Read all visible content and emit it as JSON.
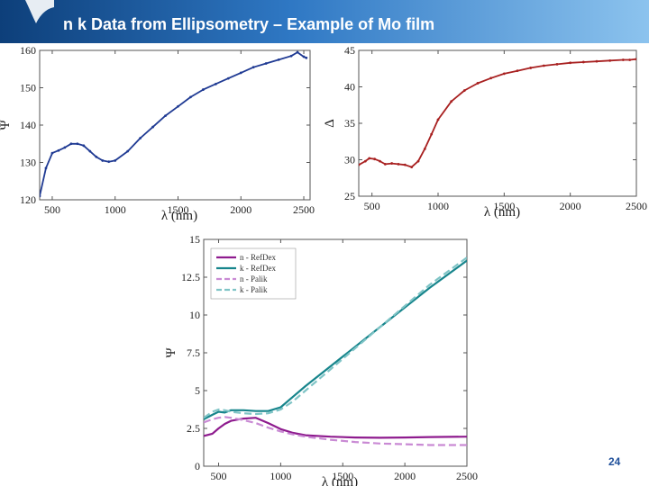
{
  "slide": {
    "title": "n k Data from Ellipsometry – Example of Mo film",
    "page_number": "24",
    "colors": {
      "header_dark": "#0d3f7a",
      "header_light": "#8cc3ee"
    }
  },
  "chart_data": [
    {
      "type": "line",
      "title": "",
      "xlabel": "λ (nm)",
      "ylabel": "Ψ",
      "xlim": [
        400,
        2550
      ],
      "ylim": [
        120,
        160
      ],
      "xticks": [
        500,
        1000,
        1500,
        2000,
        2500
      ],
      "yticks": [
        120,
        130,
        140,
        150,
        160
      ],
      "series": [
        {
          "name": "Ψ",
          "color": "#1f3a93",
          "x": [
            400,
            450,
            500,
            550,
            600,
            650,
            700,
            750,
            800,
            850,
            900,
            950,
            1000,
            1100,
            1200,
            1300,
            1400,
            1500,
            1600,
            1700,
            1800,
            1900,
            2000,
            2100,
            2200,
            2300,
            2400,
            2450,
            2500,
            2520
          ],
          "y": [
            121,
            128.5,
            132.5,
            133.2,
            134,
            135,
            135,
            134.5,
            133,
            131.5,
            130.5,
            130.2,
            130.5,
            133,
            136.5,
            139.5,
            142.5,
            145,
            147.5,
            149.5,
            151,
            152.5,
            154,
            155.5,
            156.5,
            157.5,
            158.5,
            159.5,
            158.3,
            158
          ]
        }
      ]
    },
    {
      "type": "line",
      "title": "",
      "xlabel": "λ (nm)",
      "ylabel": "Δ",
      "xlim": [
        400,
        2500
      ],
      "ylim": [
        25,
        45
      ],
      "xticks": [
        500,
        1000,
        1500,
        2000,
        2500
      ],
      "yticks": [
        25,
        30,
        35,
        40,
        45
      ],
      "series": [
        {
          "name": "Δ",
          "color": "#a82020",
          "x": [
            400,
            450,
            480,
            520,
            560,
            600,
            650,
            700,
            750,
            800,
            850,
            900,
            950,
            1000,
            1100,
            1200,
            1300,
            1400,
            1500,
            1600,
            1700,
            1800,
            1900,
            2000,
            2100,
            2200,
            2300,
            2400,
            2450,
            2500
          ],
          "y": [
            29.3,
            29.8,
            30.2,
            30.1,
            29.8,
            29.4,
            29.5,
            29.4,
            29.3,
            29,
            29.8,
            31.5,
            33.5,
            35.5,
            38,
            39.5,
            40.5,
            41.2,
            41.8,
            42.2,
            42.6,
            42.9,
            43.1,
            43.3,
            43.4,
            43.5,
            43.6,
            43.7,
            43.7,
            43.8
          ]
        }
      ]
    },
    {
      "type": "line",
      "title": "",
      "xlabel": "λ (nm)",
      "ylabel": "Ψ",
      "xlim": [
        380,
        2500
      ],
      "ylim": [
        0,
        15
      ],
      "xticks": [
        500,
        1000,
        1500,
        2000,
        2500
      ],
      "yticks": [
        0,
        2.5,
        5,
        7.5,
        10,
        12.5,
        15
      ],
      "legend_position": "top-left",
      "series": [
        {
          "name": "n - RefDex",
          "color": "#8e1b8e",
          "dashed": false,
          "x": [
            380,
            450,
            500,
            550,
            600,
            700,
            800,
            900,
            1000,
            1100,
            1200,
            1400,
            1600,
            1800,
            2000,
            2200,
            2500
          ],
          "y": [
            2,
            2.15,
            2.5,
            2.8,
            3.0,
            3.15,
            3.2,
            2.85,
            2.45,
            2.2,
            2.05,
            1.95,
            1.9,
            1.88,
            1.9,
            1.93,
            1.95
          ]
        },
        {
          "name": "k - RefDex",
          "color": "#17858c",
          "dashed": false,
          "x": [
            380,
            450,
            500,
            550,
            600,
            700,
            800,
            900,
            1000,
            1100,
            1200,
            1400,
            1600,
            1800,
            2000,
            2200,
            2500
          ],
          "y": [
            3.1,
            3.4,
            3.6,
            3.55,
            3.7,
            3.7,
            3.65,
            3.65,
            3.9,
            4.6,
            5.3,
            6.6,
            7.9,
            9.2,
            10.5,
            11.8,
            13.6
          ]
        },
        {
          "name": "n - Palik",
          "color": "#c98ad4",
          "dashed": true,
          "x": [
            380,
            450,
            500,
            550,
            600,
            700,
            800,
            900,
            1000,
            1100,
            1200,
            1400,
            1600,
            1800,
            2000,
            2200,
            2500
          ],
          "y": [
            2.9,
            3.1,
            3.2,
            3.25,
            3.2,
            3.05,
            2.85,
            2.55,
            2.3,
            2.1,
            1.95,
            1.75,
            1.6,
            1.5,
            1.45,
            1.4,
            1.4
          ]
        },
        {
          "name": "k - Palik",
          "color": "#7fc4c6",
          "dashed": true,
          "x": [
            380,
            450,
            500,
            550,
            600,
            700,
            800,
            900,
            1000,
            1100,
            1200,
            1400,
            1600,
            1800,
            2000,
            2200,
            2500
          ],
          "y": [
            3.2,
            3.6,
            3.75,
            3.7,
            3.6,
            3.5,
            3.45,
            3.5,
            3.75,
            4.3,
            5.0,
            6.4,
            7.8,
            9.2,
            10.6,
            12.0,
            13.8
          ]
        }
      ]
    }
  ]
}
